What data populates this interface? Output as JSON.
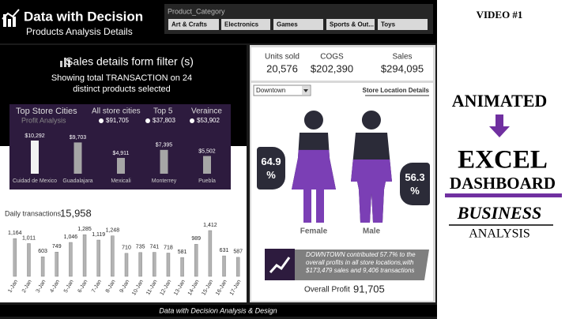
{
  "header": {
    "title": "Data with Decision",
    "subtitle": "Products Analysis Details"
  },
  "slicer": {
    "title": "Product_Category",
    "items": [
      "Art & Crafts",
      "Electronics",
      "Games",
      "Sports & Out...",
      "Toys"
    ]
  },
  "filter_panel": {
    "title": "Sales details form filter (s)",
    "line1": "Showing total TRANSACTION  on  24",
    "line2": "distinct products selected"
  },
  "profit_panel": {
    "title": "Top Store Cities",
    "subtitle": "Profit Analysis",
    "stats": [
      {
        "label": "All store cities",
        "value": "$91,705"
      },
      {
        "label": "Top 5",
        "value": "$37,803"
      },
      {
        "label": "Veraince",
        "value": "$53,902"
      }
    ]
  },
  "daily": {
    "label": "Daily transactions",
    "total": "15,958"
  },
  "chart_data": [
    {
      "type": "bar",
      "categories": [
        "Cuidad de Mexico",
        "Guadalajara",
        "Mexicali",
        "Monterrey",
        "Puebla"
      ],
      "values": [
        10292,
        9703,
        4911,
        7395,
        5502
      ],
      "value_labels": [
        "$10,292",
        "$9,703",
        "$4,911",
        "$7,395",
        "$5,502"
      ],
      "colors": [
        "#f2f2f2",
        "#a6a6a6",
        "#a6a6a6",
        "#a6a6a6",
        "#a6a6a6"
      ]
    },
    {
      "type": "bar",
      "categories": [
        "1-Jan",
        "2-Jan",
        "3-Jan",
        "4-Jan",
        "5-Jan",
        "6-Jan",
        "7-Jan",
        "8-Jan",
        "9-Jan",
        "10-Jan",
        "11-Jan",
        "12-Jan",
        "13-Jan",
        "14-Jan",
        "15-Jan",
        "16-Jan",
        "17-Jan"
      ],
      "values": [
        1164,
        1011,
        603,
        749,
        1046,
        1285,
        1119,
        1248,
        710,
        735,
        741,
        718,
        581,
        989,
        1412,
        631,
        587
      ],
      "value_labels": [
        "1,164",
        "1,011",
        "603",
        "749",
        "1,046",
        "1,285",
        "1,119",
        "1,248",
        "710",
        "735",
        "741",
        "718",
        "581",
        "989",
        "1,412",
        "631",
        "587"
      ],
      "color": "#b3b3b3"
    }
  ],
  "kpis": [
    {
      "label": "Units sold",
      "value": "20,576"
    },
    {
      "label": "COGS",
      "value": "$202,390"
    },
    {
      "label": "Sales",
      "value": "$294,095"
    }
  ],
  "store": {
    "dropdown": "Downtown",
    "link": "Store Location Details",
    "gender": [
      {
        "name": "Female",
        "value": 64.9,
        "label": "64.9 %"
      },
      {
        "name": "Male",
        "value": 56.3,
        "label": "56.3 %"
      }
    ],
    "note": "DOWNTOWN contributed 57.7% to the overall profits in all store locations,with $173,479 sales and  9,406  transactions",
    "profit_label": "Overall Profit",
    "profit_value": "91,705"
  },
  "footer": "Data with Decision Analysis & Design",
  "promo": {
    "video": "VIDEO #1",
    "line1": "ANIMATED",
    "line2": "EXCEL",
    "line3": "DASHBOARD",
    "line4": "BUSINESS",
    "line5": "ANALYSIS"
  }
}
